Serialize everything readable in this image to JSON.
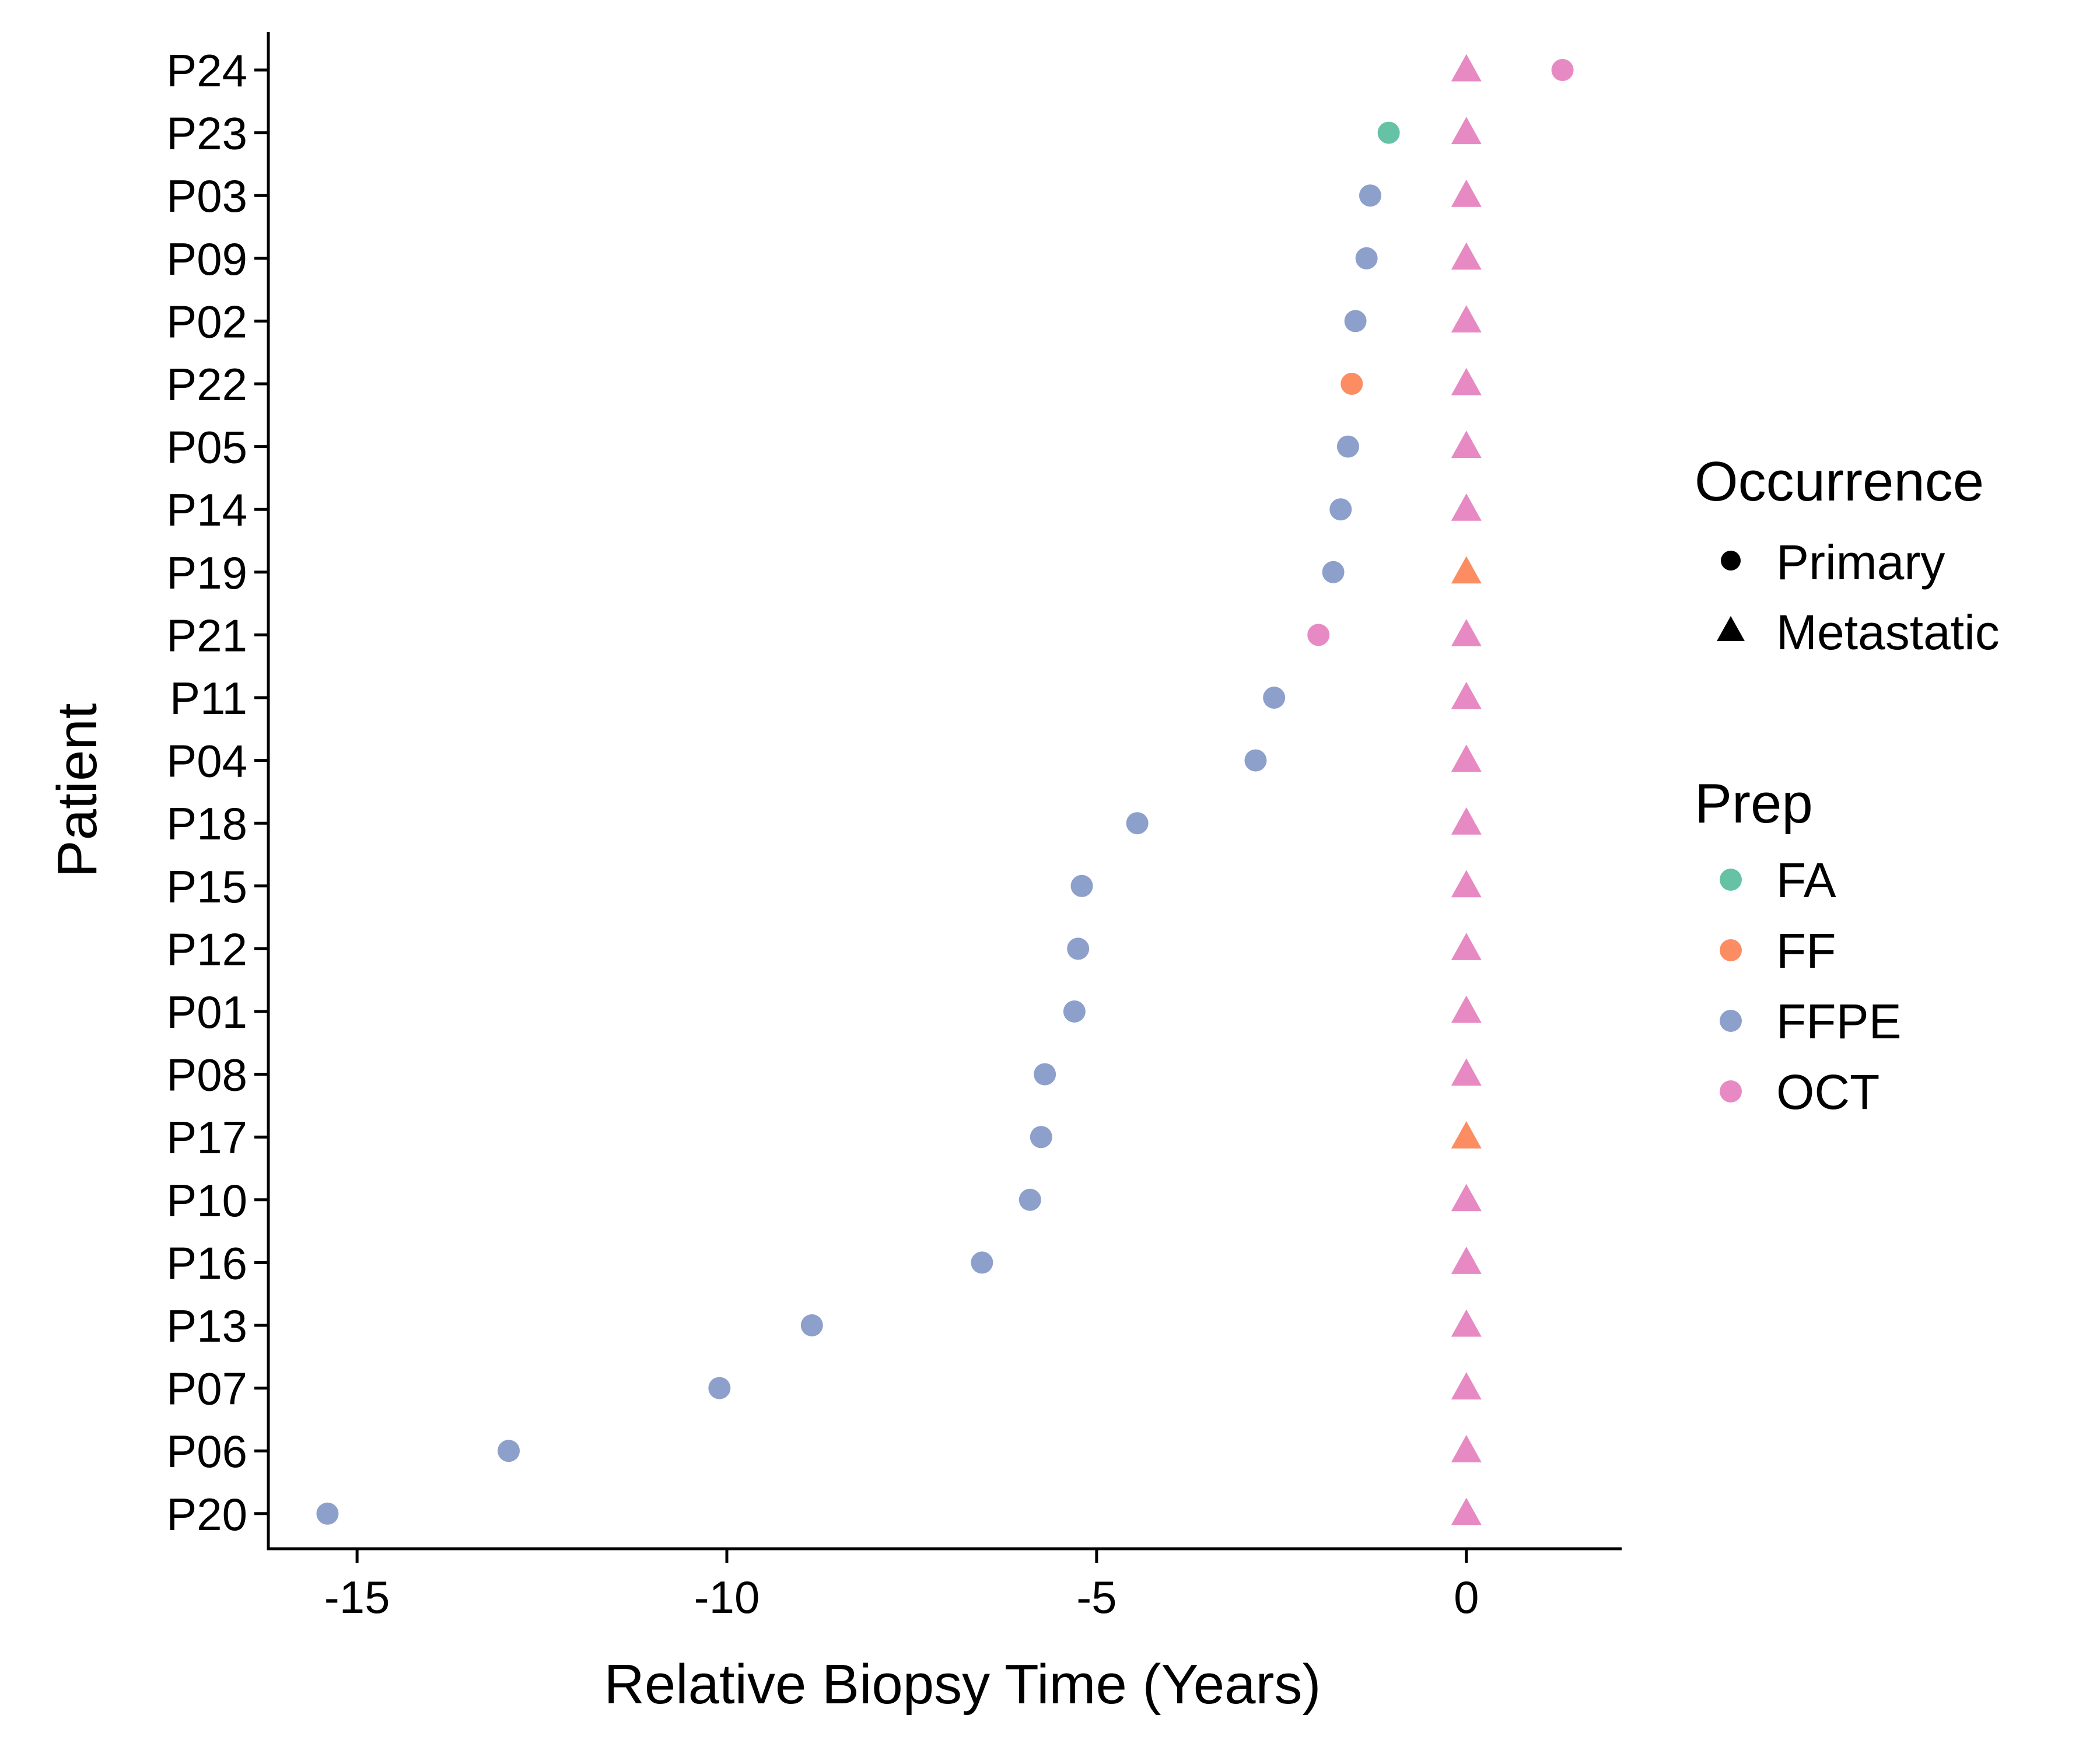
{
  "chart_data": {
    "type": "scatter",
    "xlabel": "Relative Biopsy Time (Years)",
    "ylabel": "Patient",
    "xlim": [
      -16.2,
      2.1
    ],
    "xticks": [
      -15,
      -10,
      -5,
      0
    ],
    "xtick_labels": [
      "-15",
      "-10",
      "-5",
      "0"
    ],
    "categories": [
      "P24",
      "P23",
      "P03",
      "P09",
      "P02",
      "P22",
      "P05",
      "P14",
      "P19",
      "P21",
      "P11",
      "P04",
      "P18",
      "P15",
      "P12",
      "P01",
      "P08",
      "P17",
      "P10",
      "P16",
      "P13",
      "P07",
      "P06",
      "P20"
    ],
    "grid": false,
    "legend_position": "right",
    "legends": [
      {
        "title": "Occurrence",
        "items": [
          {
            "label": "Primary",
            "shape": "circle"
          },
          {
            "label": "Metastatic",
            "shape": "triangle"
          }
        ]
      },
      {
        "title": "Prep",
        "items": [
          {
            "label": "FA",
            "color": "#66c2a5"
          },
          {
            "label": "FF",
            "color": "#fc8d62"
          },
          {
            "label": "FFPE",
            "color": "#8da0cb"
          },
          {
            "label": "OCT",
            "color": "#e78ac3"
          }
        ]
      }
    ],
    "colors": {
      "FA": "#66c2a5",
      "FF": "#fc8d62",
      "FFPE": "#8da0cb",
      "OCT": "#e78ac3"
    },
    "points": [
      {
        "patient": "P24",
        "x": 1.3,
        "occurrence": "Primary",
        "prep": "OCT"
      },
      {
        "patient": "P24",
        "x": 0,
        "occurrence": "Metastatic",
        "prep": "OCT"
      },
      {
        "patient": "P23",
        "x": -1.05,
        "occurrence": "Primary",
        "prep": "FA"
      },
      {
        "patient": "P23",
        "x": 0,
        "occurrence": "Metastatic",
        "prep": "OCT"
      },
      {
        "patient": "P03",
        "x": -1.3,
        "occurrence": "Primary",
        "prep": "FFPE"
      },
      {
        "patient": "P03",
        "x": 0,
        "occurrence": "Metastatic",
        "prep": "OCT"
      },
      {
        "patient": "P09",
        "x": -1.35,
        "occurrence": "Primary",
        "prep": "FFPE"
      },
      {
        "patient": "P09",
        "x": 0,
        "occurrence": "Metastatic",
        "prep": "OCT"
      },
      {
        "patient": "P02",
        "x": -1.5,
        "occurrence": "Primary",
        "prep": "FFPE"
      },
      {
        "patient": "P02",
        "x": 0,
        "occurrence": "Metastatic",
        "prep": "OCT"
      },
      {
        "patient": "P22",
        "x": -1.55,
        "occurrence": "Primary",
        "prep": "FF"
      },
      {
        "patient": "P22",
        "x": 0,
        "occurrence": "Metastatic",
        "prep": "OCT"
      },
      {
        "patient": "P05",
        "x": -1.6,
        "occurrence": "Primary",
        "prep": "FFPE"
      },
      {
        "patient": "P05",
        "x": 0,
        "occurrence": "Metastatic",
        "prep": "OCT"
      },
      {
        "patient": "P14",
        "x": -1.7,
        "occurrence": "Primary",
        "prep": "FFPE"
      },
      {
        "patient": "P14",
        "x": 0,
        "occurrence": "Metastatic",
        "prep": "OCT"
      },
      {
        "patient": "P19",
        "x": -1.8,
        "occurrence": "Primary",
        "prep": "FFPE"
      },
      {
        "patient": "P19",
        "x": 0,
        "occurrence": "Metastatic",
        "prep": "FF"
      },
      {
        "patient": "P21",
        "x": -2.0,
        "occurrence": "Primary",
        "prep": "OCT"
      },
      {
        "patient": "P21",
        "x": 0,
        "occurrence": "Metastatic",
        "prep": "OCT"
      },
      {
        "patient": "P11",
        "x": -2.6,
        "occurrence": "Primary",
        "prep": "FFPE"
      },
      {
        "patient": "P11",
        "x": 0,
        "occurrence": "Metastatic",
        "prep": "OCT"
      },
      {
        "patient": "P04",
        "x": -2.85,
        "occurrence": "Primary",
        "prep": "FFPE"
      },
      {
        "patient": "P04",
        "x": 0,
        "occurrence": "Metastatic",
        "prep": "OCT"
      },
      {
        "patient": "P18",
        "x": -4.45,
        "occurrence": "Primary",
        "prep": "FFPE"
      },
      {
        "patient": "P18",
        "x": 0,
        "occurrence": "Metastatic",
        "prep": "OCT"
      },
      {
        "patient": "P15",
        "x": -5.2,
        "occurrence": "Primary",
        "prep": "FFPE"
      },
      {
        "patient": "P15",
        "x": 0,
        "occurrence": "Metastatic",
        "prep": "OCT"
      },
      {
        "patient": "P12",
        "x": -5.25,
        "occurrence": "Primary",
        "prep": "FFPE"
      },
      {
        "patient": "P12",
        "x": 0,
        "occurrence": "Metastatic",
        "prep": "OCT"
      },
      {
        "patient": "P01",
        "x": -5.3,
        "occurrence": "Primary",
        "prep": "FFPE"
      },
      {
        "patient": "P01",
        "x": 0,
        "occurrence": "Metastatic",
        "prep": "OCT"
      },
      {
        "patient": "P08",
        "x": -5.7,
        "occurrence": "Primary",
        "prep": "FFPE"
      },
      {
        "patient": "P08",
        "x": 0,
        "occurrence": "Metastatic",
        "prep": "OCT"
      },
      {
        "patient": "P17",
        "x": -5.75,
        "occurrence": "Primary",
        "prep": "FFPE"
      },
      {
        "patient": "P17",
        "x": 0,
        "occurrence": "Metastatic",
        "prep": "FF"
      },
      {
        "patient": "P10",
        "x": -5.9,
        "occurrence": "Primary",
        "prep": "FFPE"
      },
      {
        "patient": "P10",
        "x": 0,
        "occurrence": "Metastatic",
        "prep": "OCT"
      },
      {
        "patient": "P16",
        "x": -6.55,
        "occurrence": "Primary",
        "prep": "FFPE"
      },
      {
        "patient": "P16",
        "x": 0,
        "occurrence": "Metastatic",
        "prep": "OCT"
      },
      {
        "patient": "P13",
        "x": -8.85,
        "occurrence": "Primary",
        "prep": "FFPE"
      },
      {
        "patient": "P13",
        "x": 0,
        "occurrence": "Metastatic",
        "prep": "OCT"
      },
      {
        "patient": "P07",
        "x": -10.1,
        "occurrence": "Primary",
        "prep": "FFPE"
      },
      {
        "patient": "P07",
        "x": 0,
        "occurrence": "Metastatic",
        "prep": "OCT"
      },
      {
        "patient": "P06",
        "x": -12.95,
        "occurrence": "Primary",
        "prep": "FFPE"
      },
      {
        "patient": "P06",
        "x": 0,
        "occurrence": "Metastatic",
        "prep": "OCT"
      },
      {
        "patient": "P20",
        "x": -15.4,
        "occurrence": "Primary",
        "prep": "FFPE"
      },
      {
        "patient": "P20",
        "x": 0,
        "occurrence": "Metastatic",
        "prep": "OCT"
      }
    ]
  }
}
